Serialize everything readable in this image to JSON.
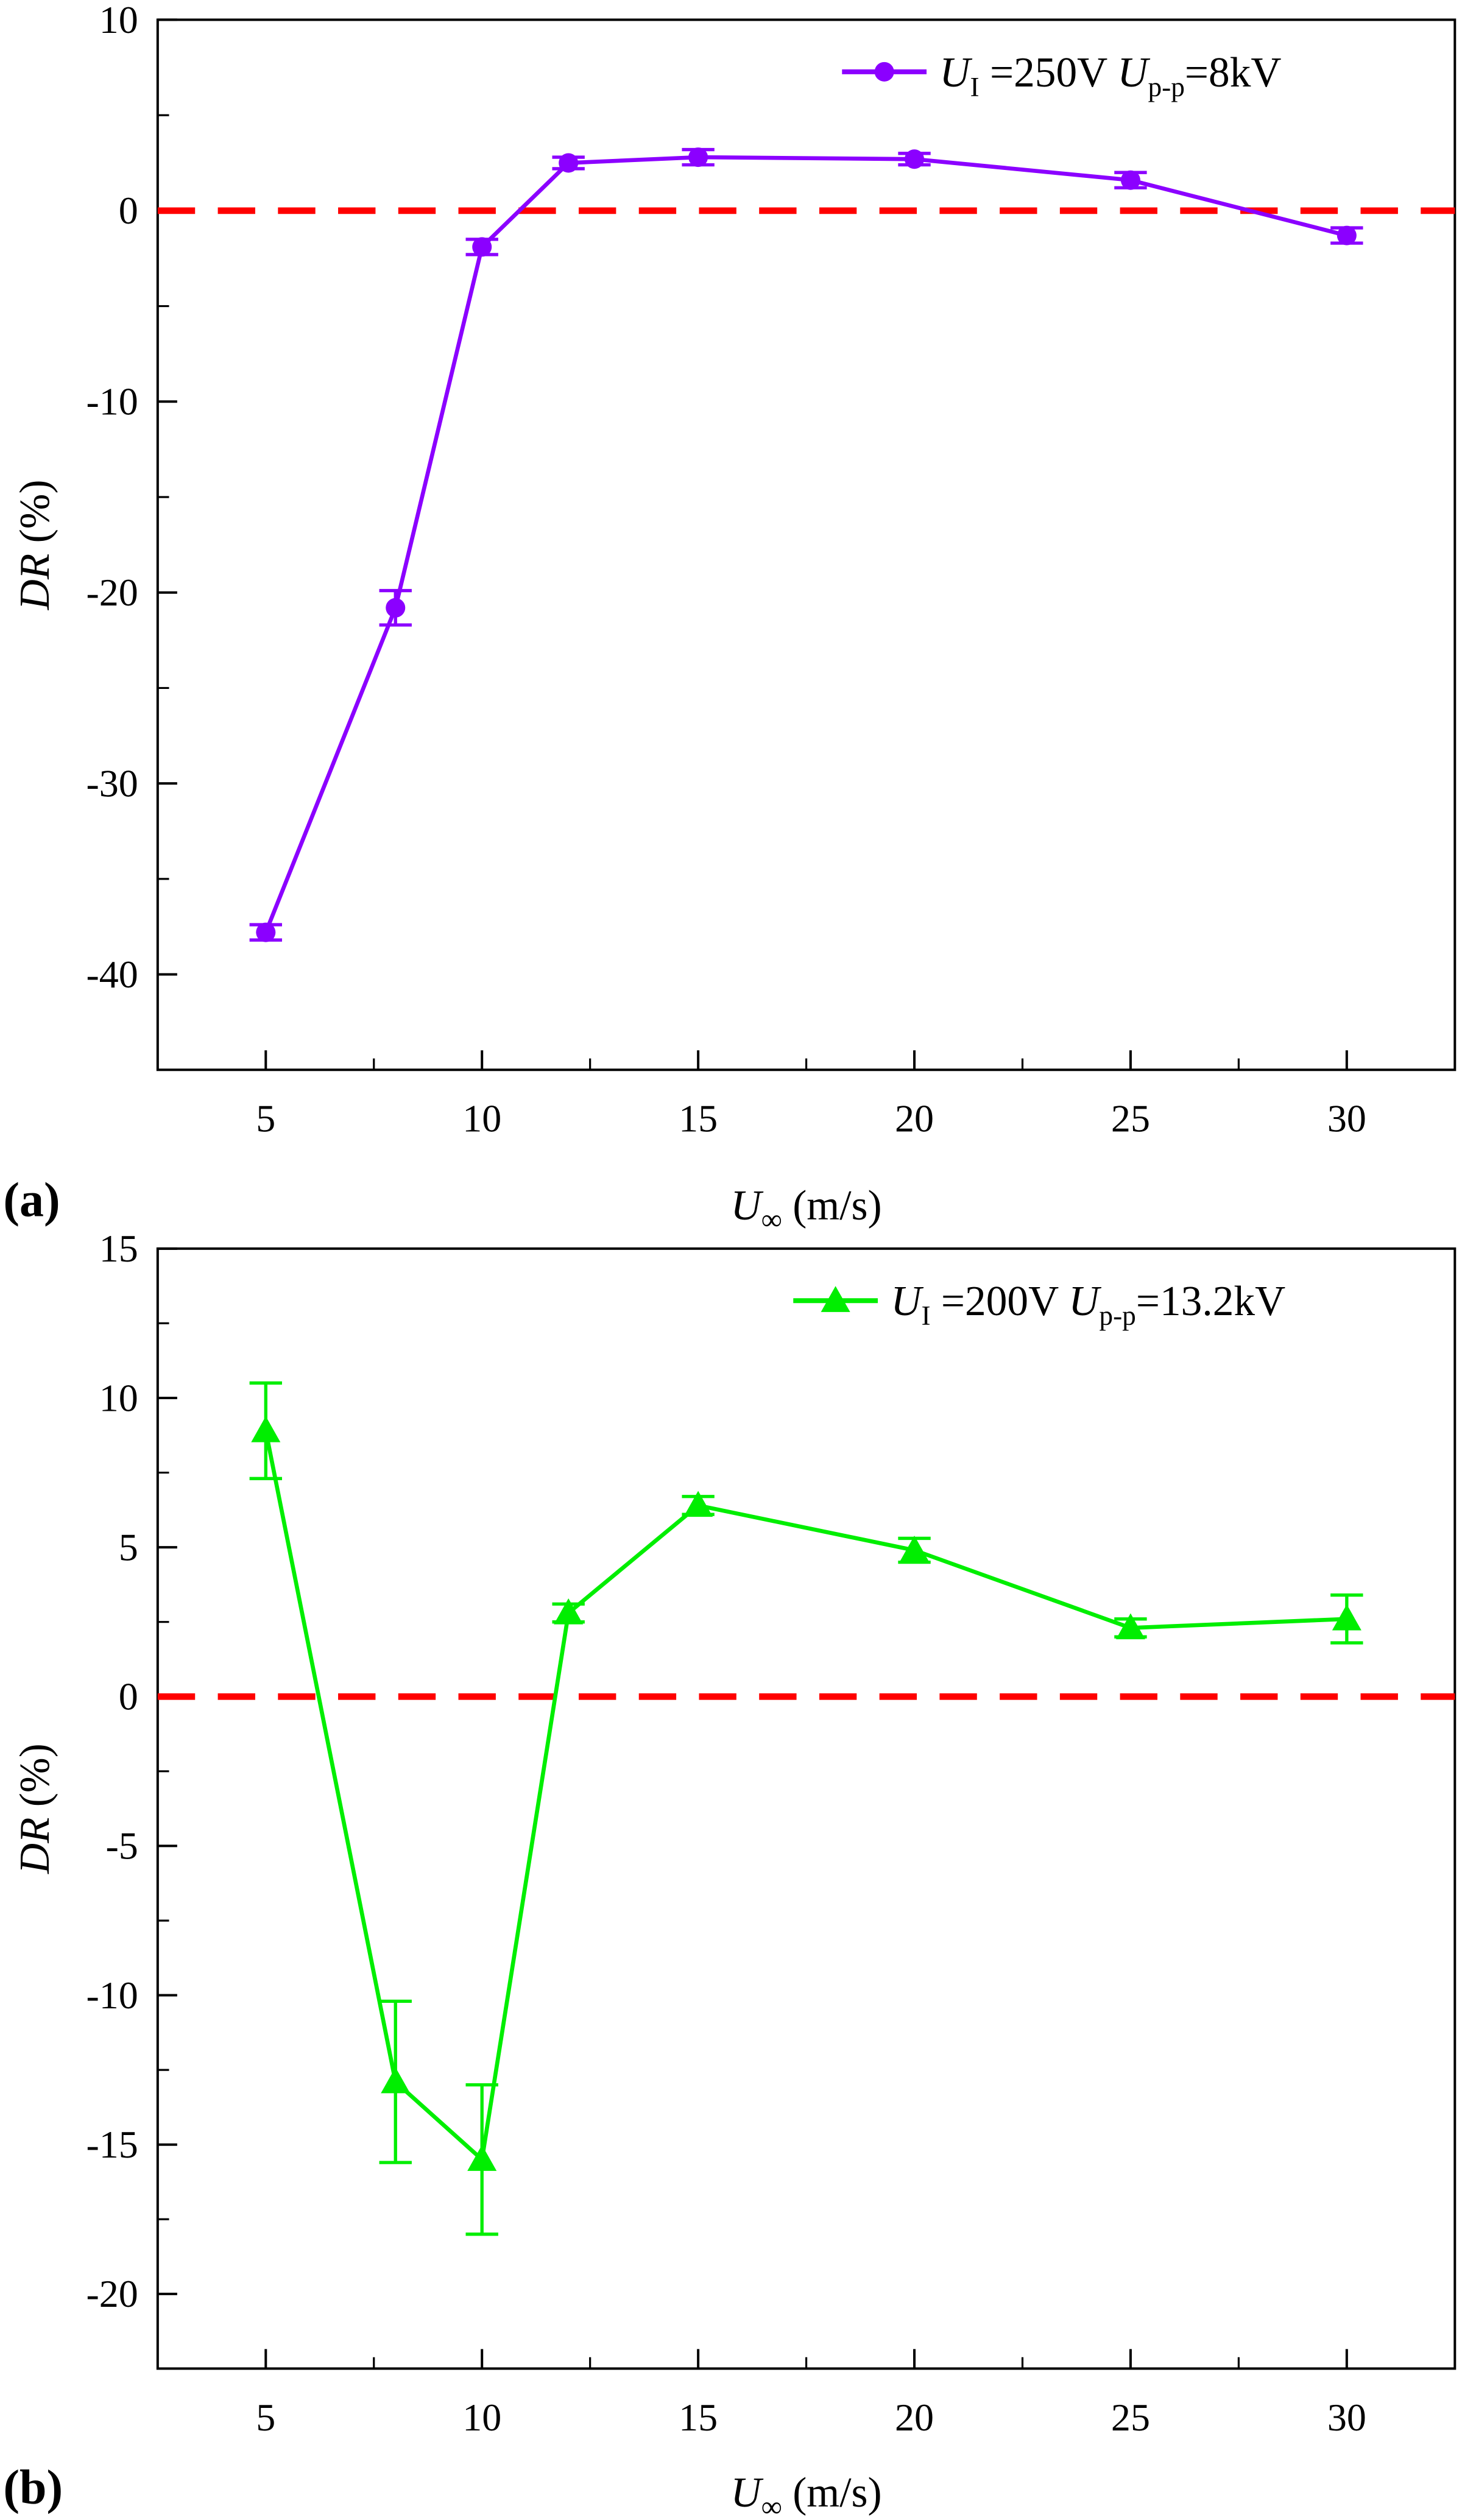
{
  "colors": {
    "series_a": "#8B00FF",
    "series_b": "#00EE00",
    "zero_line": "#FF0000",
    "axis": "#000000"
  },
  "chart_data": [
    {
      "type": "line",
      "panel_label": "(a)",
      "xlabel": "U∞ (m/s)",
      "xlabel_main": "U",
      "xlabel_sub": "∞",
      "xlabel_rest": " (m/s)",
      "ylabel_italic": "DR",
      "ylabel_rest": " (%)",
      "xlim": [
        2.5,
        32.5
      ],
      "ylim": [
        -45,
        10
      ],
      "xticks": [
        5,
        10,
        15,
        20,
        25,
        30
      ],
      "yticks": [
        -40,
        -30,
        -20,
        -10,
        0,
        10
      ],
      "reference_line": 0,
      "legend": {
        "position": "top-right",
        "u1": "U",
        "u1_sub": "I",
        "u1_val": " =250V ",
        "upp": "U",
        "upp_sub": "p-p",
        "upp_val": "=8kV"
      },
      "series": [
        {
          "name": "UI =250V Up-p=8kV",
          "marker": "circle",
          "x": [
            5,
            8,
            10,
            12,
            15,
            20,
            25,
            30
          ],
          "y": [
            -37.8,
            -20.8,
            -1.9,
            2.5,
            2.8,
            2.7,
            1.6,
            -1.3
          ],
          "err": [
            0.4,
            0.9,
            0.4,
            0.3,
            0.4,
            0.3,
            0.4,
            0.4
          ]
        }
      ]
    },
    {
      "type": "line",
      "panel_label": "(b)",
      "xlabel": "U∞ (m/s)",
      "xlabel_main": "U",
      "xlabel_sub": "∞",
      "xlabel_rest": " (m/s)",
      "ylabel_italic": "DR",
      "ylabel_rest": " (%)",
      "xlim": [
        2.5,
        32.5
      ],
      "ylim": [
        -22.5,
        15
      ],
      "xticks": [
        5,
        10,
        15,
        20,
        25,
        30
      ],
      "yticks": [
        -20,
        -15,
        -10,
        -5,
        0,
        5,
        10,
        15
      ],
      "reference_line": 0,
      "legend": {
        "position": "top-right",
        "u1": "U",
        "u1_sub": "I",
        "u1_val": " =200V ",
        "upp": "U",
        "upp_sub": "p-p",
        "upp_val": "=13.2kV"
      },
      "series": [
        {
          "name": "UI =200V Up-p=13.2kV",
          "marker": "triangle",
          "x": [
            5,
            8,
            10,
            12,
            15,
            20,
            25,
            30
          ],
          "y": [
            8.9,
            -12.9,
            -15.5,
            2.8,
            6.4,
            4.9,
            2.3,
            2.6
          ],
          "err": [
            1.6,
            2.7,
            2.5,
            0.3,
            0.3,
            0.4,
            0.3,
            0.8
          ]
        }
      ]
    }
  ]
}
